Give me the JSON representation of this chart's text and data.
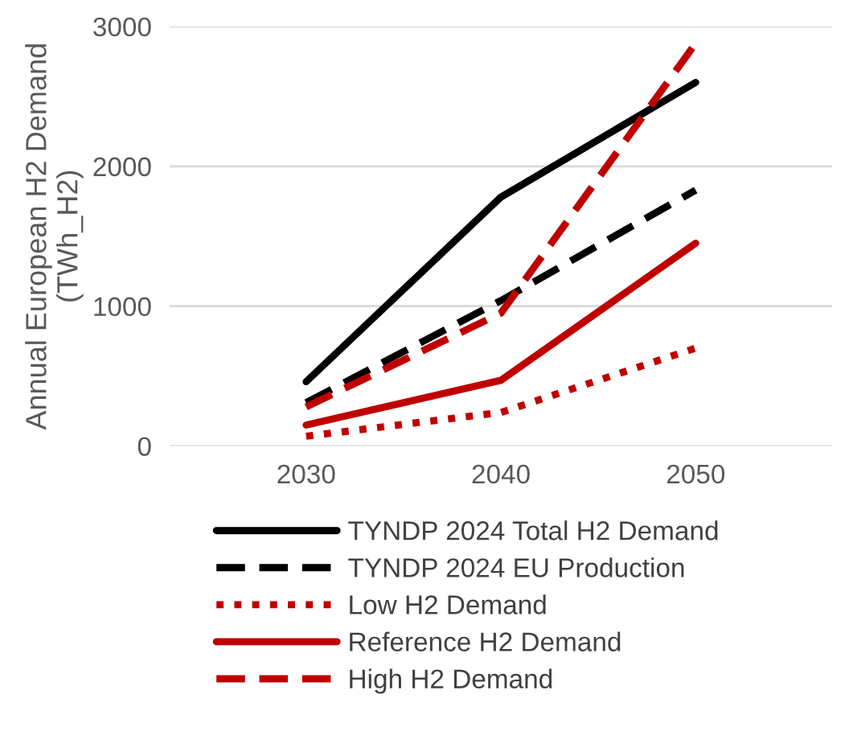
{
  "chart_data": {
    "type": "line",
    "ylabel": "Annual European H2 Demand\n(TWh_H2)",
    "categories": [
      "2030",
      "2040",
      "2050"
    ],
    "ylim": [
      0,
      3000
    ],
    "yticks": [
      0,
      1000,
      2000,
      3000
    ],
    "grid": "y",
    "legend": "bottom",
    "marker": "none",
    "series": [
      {
        "name": "TYNDP 2024 Total H2 Demand",
        "color": "#000000",
        "line_style": "solid",
        "values": [
          460,
          1780,
          2600
        ]
      },
      {
        "name": "TYNDP 2024 EU Production",
        "color": "#000000",
        "line_style": "dashed",
        "values": [
          310,
          1040,
          1830
        ]
      },
      {
        "name": "Low H2 Demand",
        "color": "#c00000",
        "line_style": "dotted",
        "values": [
          70,
          240,
          700
        ]
      },
      {
        "name": "Reference H2 Demand",
        "color": "#c00000",
        "line_style": "solid",
        "values": [
          150,
          470,
          1450
        ]
      },
      {
        "name": "High H2 Demand",
        "color": "#c00000",
        "line_style": "dashed",
        "values": [
          280,
          950,
          2880
        ]
      }
    ]
  }
}
